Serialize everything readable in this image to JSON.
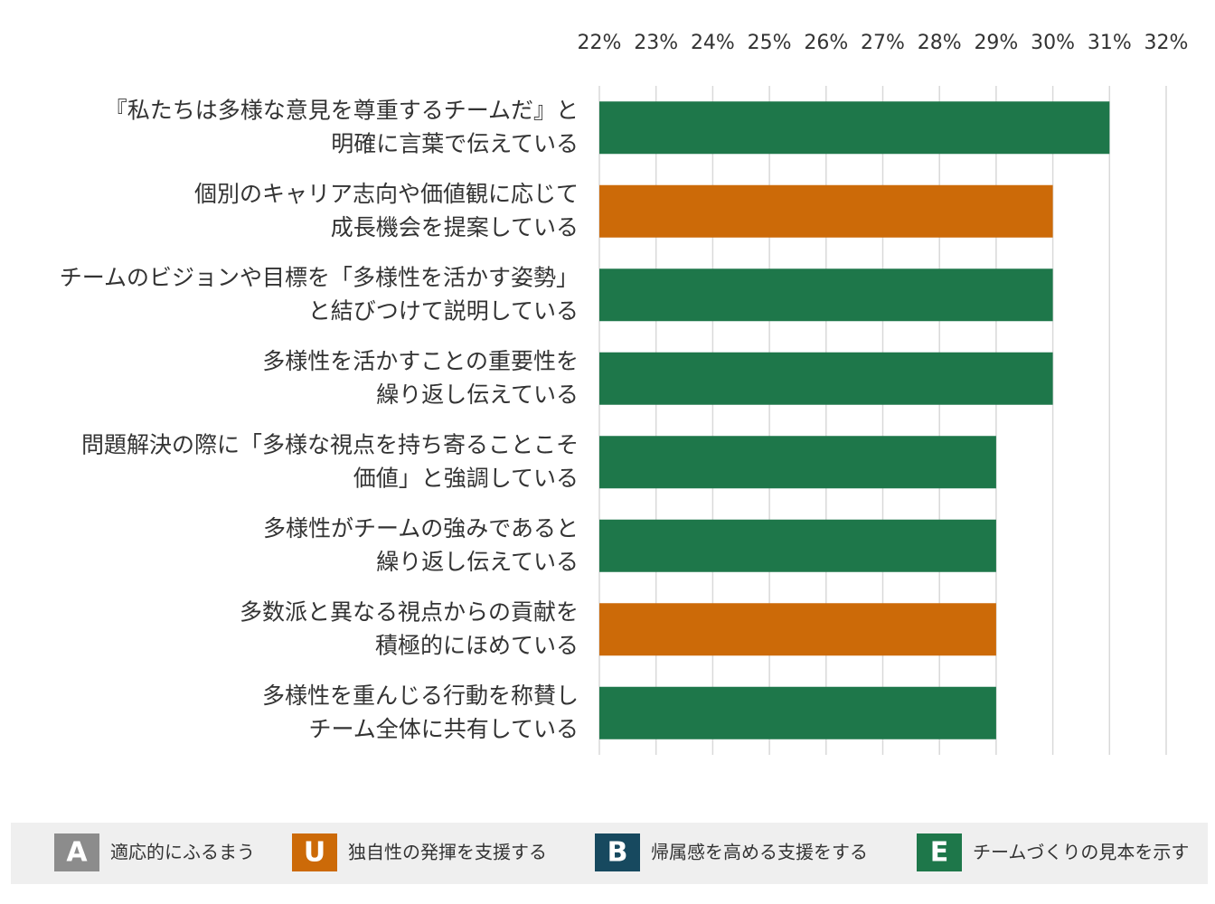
{
  "chart_data": {
    "type": "barh",
    "categories": [
      [
        "『私たちは多様な意見を尊重するチームだ』と",
        "明確に言葉で伝えている"
      ],
      [
        "個別のキャリア志向や価値観に応じて",
        "成長機会を提案している"
      ],
      [
        "チームのビジョンや目標を「多様性を活かす姿勢」",
        "と結びつけて説明している"
      ],
      [
        "多様性を活かすことの重要性を",
        "繰り返し伝えている"
      ],
      [
        "問題解決の際に「多様な視点を持ち寄ることこそ",
        "価値」と強調している"
      ],
      [
        "多様性がチームの強みであると",
        "繰り返し伝えている"
      ],
      [
        "多数派と異なる視点からの貢献を",
        "積極的にほめている"
      ],
      [
        "多様性を重んじる行動を称賛し",
        "チーム全体に共有している"
      ]
    ],
    "values": [
      31,
      30,
      30,
      30,
      29,
      29,
      29,
      29
    ],
    "colors": [
      "#1e774a",
      "#cc6a08",
      "#1e774a",
      "#1e774a",
      "#1e774a",
      "#1e774a",
      "#cc6a08",
      "#1e774a"
    ],
    "xlim": [
      22,
      32
    ],
    "xticks": [
      {
        "value": 22,
        "label": "22%"
      },
      {
        "value": 23,
        "label": "23%"
      },
      {
        "value": 24,
        "label": "24%"
      },
      {
        "value": 25,
        "label": "25%"
      },
      {
        "value": 26,
        "label": "26%"
      },
      {
        "value": 27,
        "label": "27%"
      },
      {
        "value": 28,
        "label": "28%"
      },
      {
        "value": 29,
        "label": "29%"
      },
      {
        "value": 30,
        "label": "30%"
      },
      {
        "value": 31,
        "label": "31%"
      },
      {
        "value": 32,
        "label": "32%"
      }
    ],
    "grid": true,
    "legend": [
      {
        "letter": "A",
        "label": "適応的にふるまう",
        "color": "#8c8c8c"
      },
      {
        "letter": "U",
        "label": "独自性の発揮を支援する",
        "color": "#cc6a08"
      },
      {
        "letter": "B",
        "label": "帰属感を高める支援をする",
        "color": "#17495f"
      },
      {
        "letter": "E",
        "label": "チームづくりの見本を示す",
        "color": "#1e774a"
      }
    ]
  }
}
